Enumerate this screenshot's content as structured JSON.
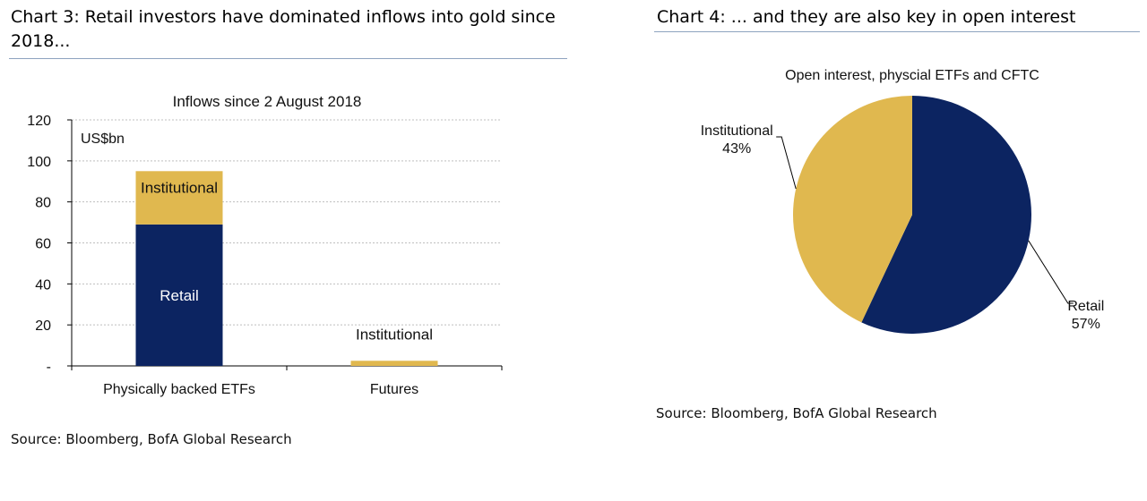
{
  "colors": {
    "retail": "#0c2461",
    "institutional": "#e0b84f",
    "gridline": "#bfbfbf",
    "heading_rule": "#8ea3bf"
  },
  "left": {
    "heading": "Chart 3: Retail investors have dominated inflows into gold since 2018...",
    "source": "Source: Bloomberg, BofA Global Research"
  },
  "right": {
    "heading": "Chart 4: ... and they are also key in open interest",
    "source": "Source: Bloomberg, BofA Global Research"
  },
  "chart_data": [
    {
      "type": "bar",
      "stacked": true,
      "title": "Inflows since 2 August 2018",
      "unit_label": "US$bn",
      "categories": [
        "Physically backed ETFs",
        "Futures"
      ],
      "series": [
        {
          "name": "Retail",
          "color": "#0c2461",
          "values": [
            69,
            0
          ],
          "labels": [
            "Retail",
            ""
          ]
        },
        {
          "name": "Institutional",
          "color": "#e0b84f",
          "values": [
            26,
            2.5
          ],
          "labels": [
            "Institutional",
            "Institutional"
          ]
        }
      ],
      "ylim": [
        0,
        120
      ],
      "yticks": [
        0,
        20,
        40,
        60,
        80,
        100,
        120
      ],
      "ytick_labels": [
        "-",
        "20",
        "40",
        "60",
        "80",
        "100",
        "120"
      ],
      "grid": true
    },
    {
      "type": "pie",
      "title": "Open interest, physcial ETFs and CFTC",
      "slices": [
        {
          "label": "Retail",
          "value": 57,
          "value_label": "57%",
          "color": "#0c2461"
        },
        {
          "label": "Institutional",
          "value": 43,
          "value_label": "43%",
          "color": "#e0b84f"
        }
      ]
    }
  ]
}
